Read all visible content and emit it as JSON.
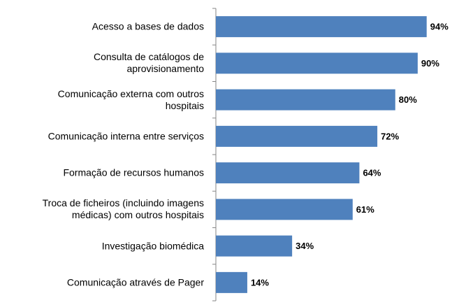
{
  "chart_data": {
    "type": "bar",
    "orientation": "horizontal",
    "categories": [
      "Acesso a bases de dados",
      "Consulta de catálogos de\naprovisionamento",
      "Comunicação externa com outros\nhospitais",
      "Comunicação interna entre serviços",
      "Formação de recursos humanos",
      "Troca de ficheiros (incluindo imagens\nmédicas) com outros hospitais",
      "Investigação biomédica",
      "Comunicação através de Pager"
    ],
    "values": [
      94,
      90,
      80,
      72,
      64,
      61,
      34,
      14
    ],
    "value_labels": [
      "94%",
      "90%",
      "80%",
      "72%",
      "64%",
      "61%",
      "34%",
      "14%"
    ],
    "color": "#4f81bd"
  }
}
